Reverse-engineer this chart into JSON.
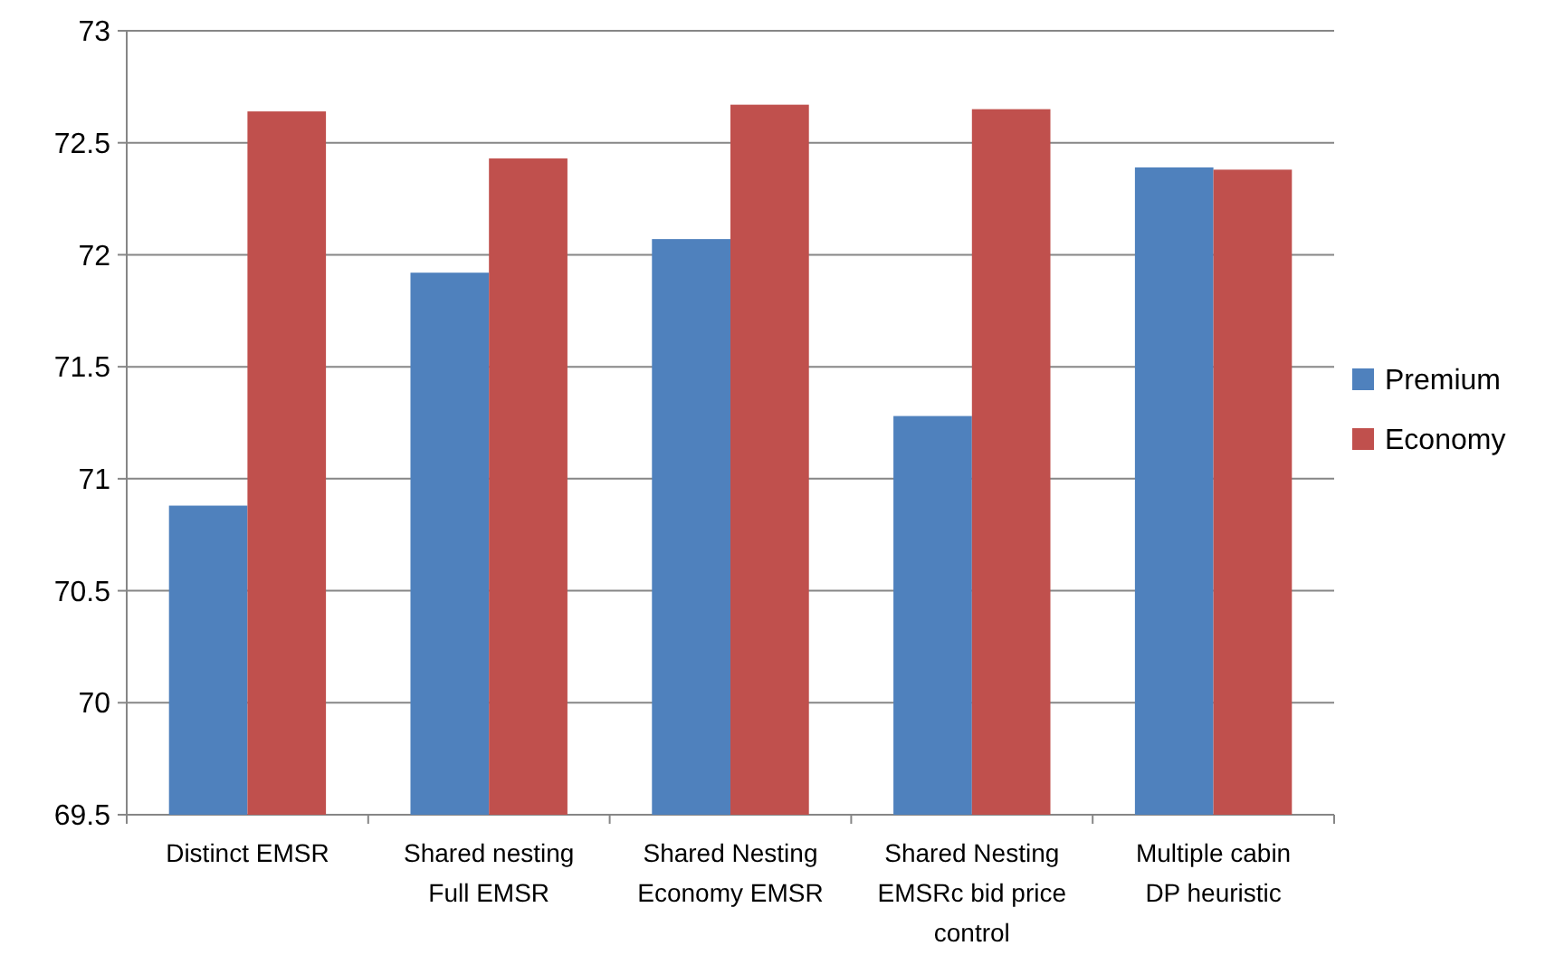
{
  "chart_data": {
    "type": "bar",
    "categories": [
      "Distinct EMSR",
      "Shared nesting Full EMSR",
      "Shared Nesting Economy EMSR",
      "Shared Nesting EMSRc bid price control",
      "Multiple cabin DP heuristic"
    ],
    "series": [
      {
        "name": "Premium",
        "color": "#4f81bd",
        "values": [
          70.88,
          71.92,
          72.07,
          71.28,
          72.39
        ]
      },
      {
        "name": "Economy",
        "color": "#c0504d",
        "values": [
          72.64,
          72.43,
          72.67,
          72.65,
          72.38
        ]
      }
    ],
    "ylim": [
      69.5,
      73
    ],
    "yticks": [
      69.5,
      70,
      70.5,
      71,
      71.5,
      72,
      72.5,
      73
    ],
    "grid": "y",
    "legend": "right"
  }
}
